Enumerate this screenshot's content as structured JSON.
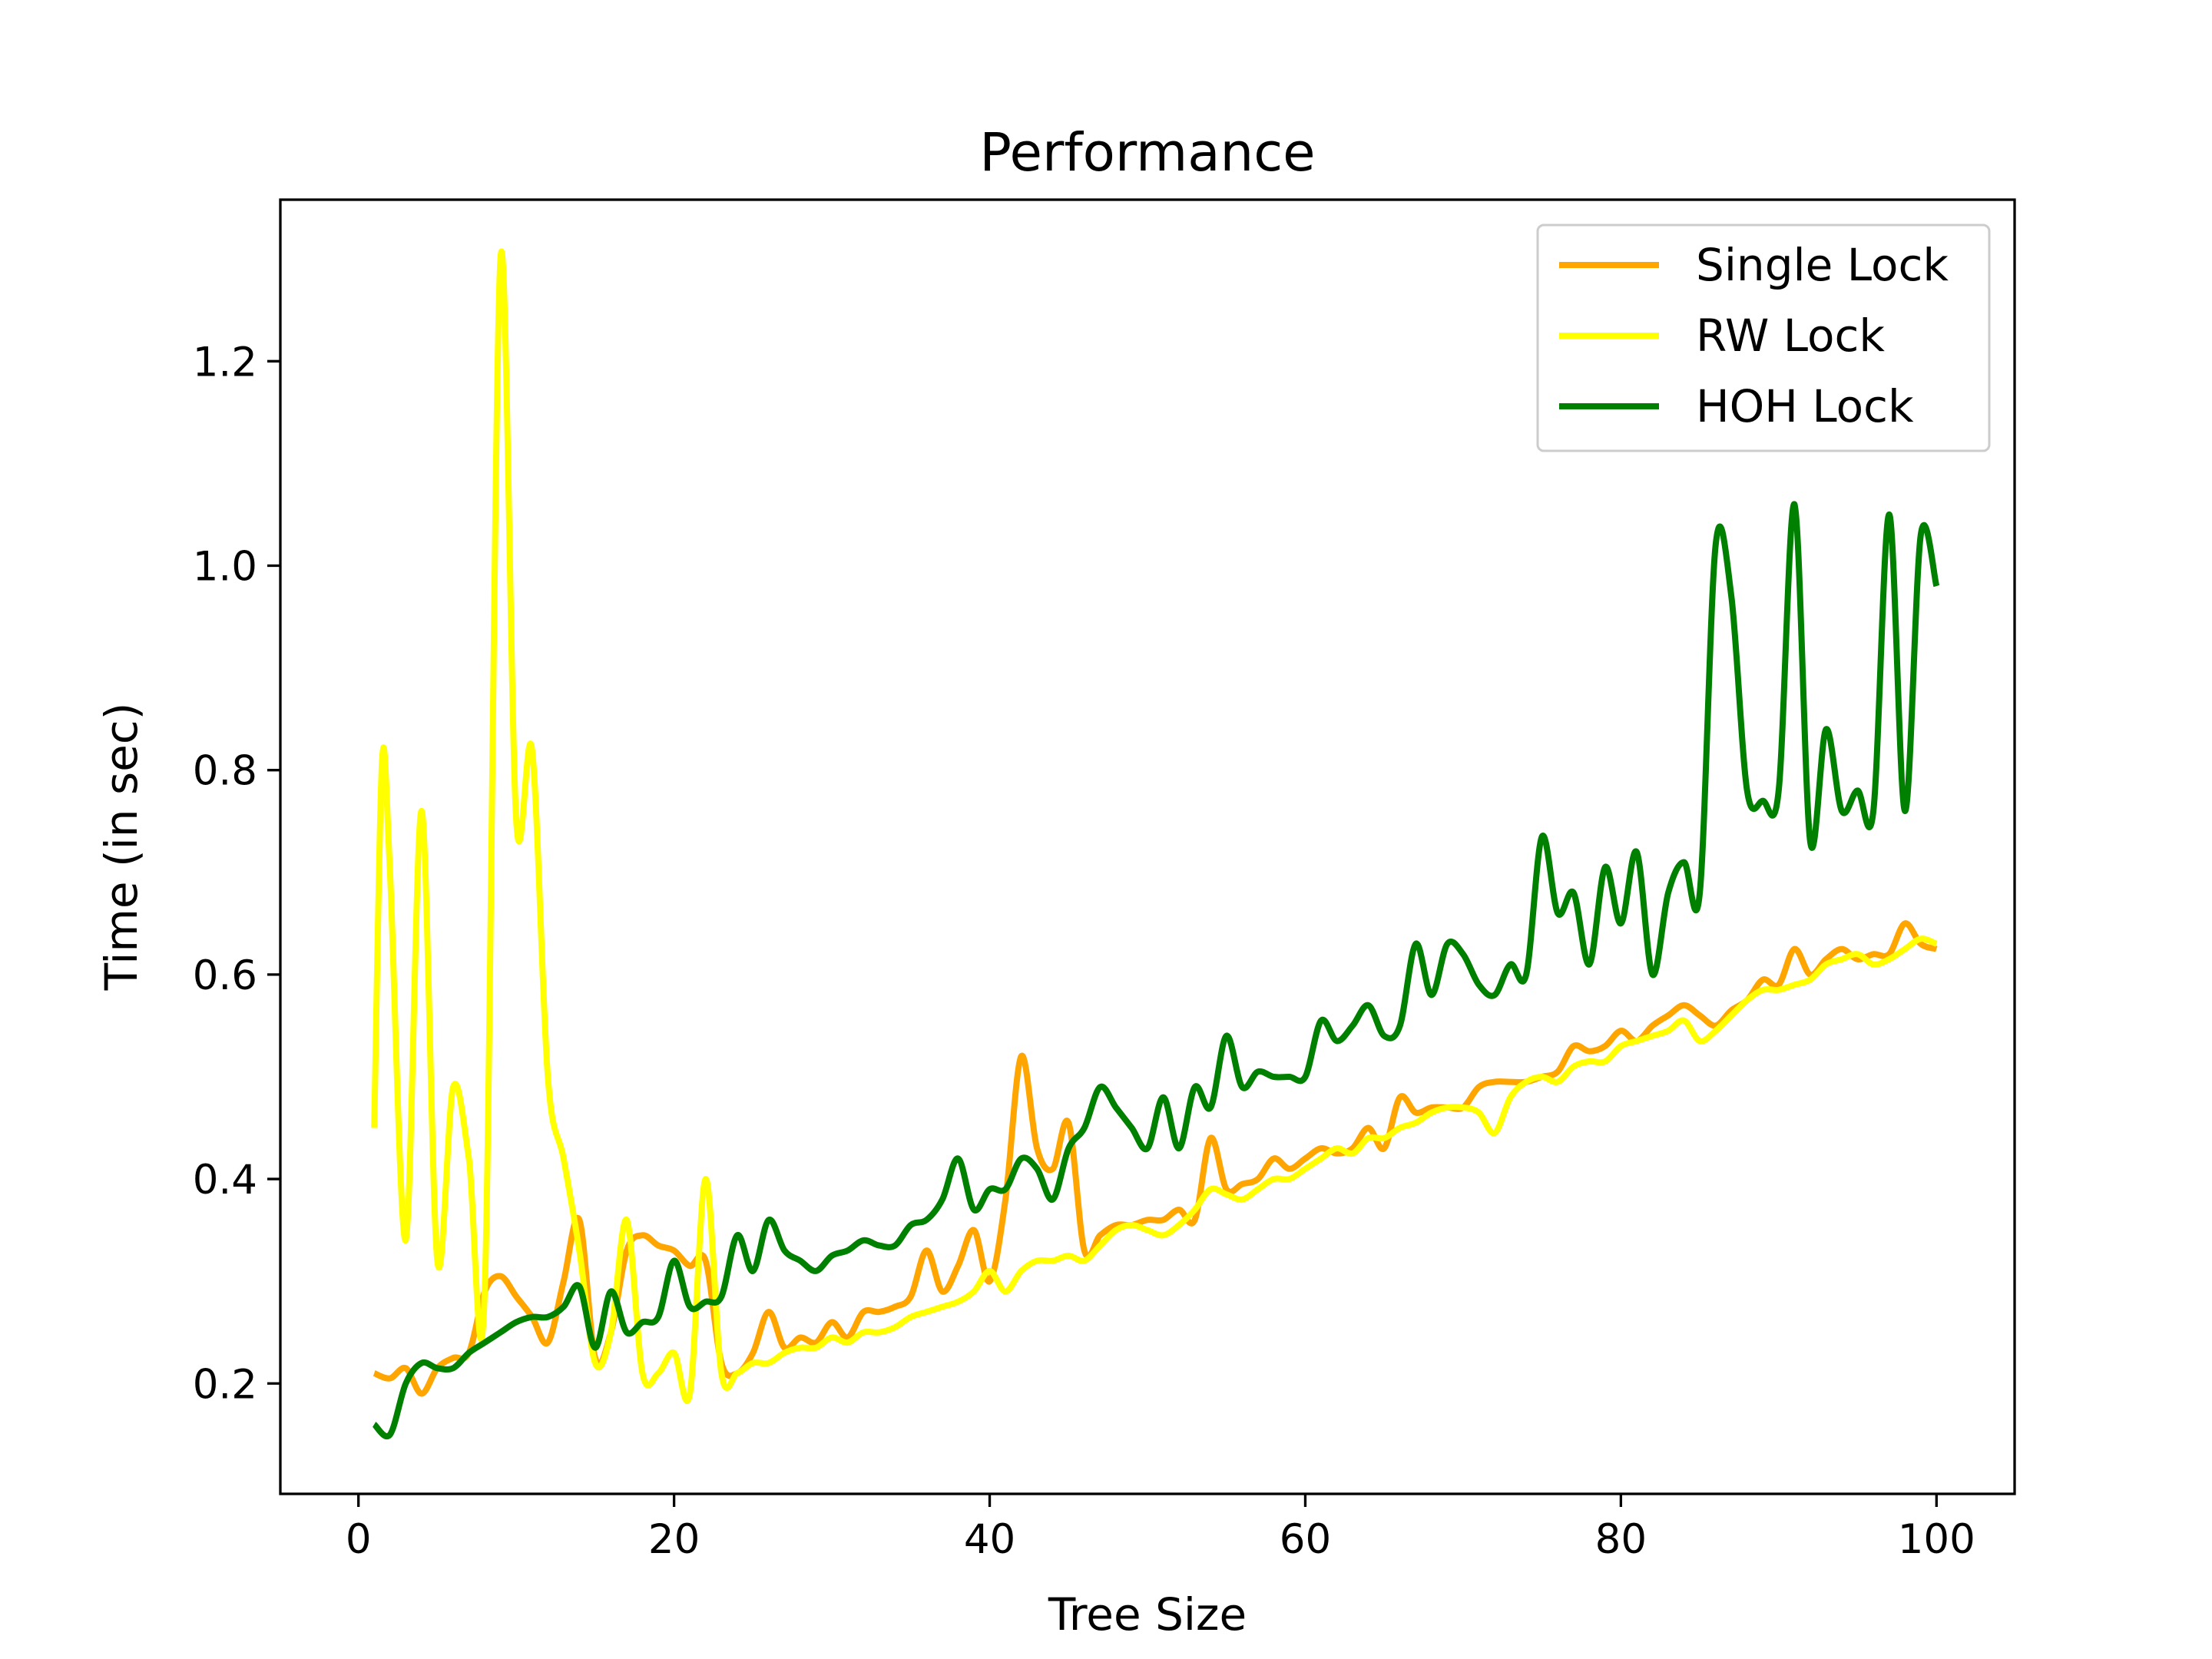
{
  "chart_data": {
    "type": "line",
    "title": "Performance",
    "xlabel": "Tree Size",
    "ylabel": "Time (in sec)",
    "xlim": [
      -4.95,
      104.95
    ],
    "ylim": [
      0.092,
      1.358
    ],
    "xticks": [
      0,
      20,
      40,
      60,
      80,
      100
    ],
    "yticks": [
      0.2,
      0.4,
      0.6,
      0.8,
      1.0,
      1.2
    ],
    "ytick_labels": [
      "0.2",
      "0.4",
      "0.6",
      "0.8",
      "1.0",
      "1.2"
    ],
    "grid": false,
    "legend_position": "top-right",
    "series": [
      {
        "name": "Single Lock",
        "color": "#FFA500",
        "points": [
          [
            1,
            0.21
          ],
          [
            2,
            0.205
          ],
          [
            3,
            0.215
          ],
          [
            4,
            0.19
          ],
          [
            5,
            0.215
          ],
          [
            6,
            0.225
          ],
          [
            7,
            0.23
          ],
          [
            8,
            0.29
          ],
          [
            9,
            0.305
          ],
          [
            10,
            0.285
          ],
          [
            11,
            0.265
          ],
          [
            12,
            0.24
          ],
          [
            13,
            0.3
          ],
          [
            14,
            0.36
          ],
          [
            15,
            0.225
          ],
          [
            16,
            0.25
          ],
          [
            17,
            0.33
          ],
          [
            18,
            0.345
          ],
          [
            19,
            0.335
          ],
          [
            20,
            0.33
          ],
          [
            21,
            0.315
          ],
          [
            22,
            0.32
          ],
          [
            23,
            0.22
          ],
          [
            24,
            0.21
          ],
          [
            25,
            0.23
          ],
          [
            26,
            0.27
          ],
          [
            27,
            0.235
          ],
          [
            28,
            0.245
          ],
          [
            29,
            0.24
          ],
          [
            30,
            0.26
          ],
          [
            31,
            0.245
          ],
          [
            32,
            0.27
          ],
          [
            33,
            0.27
          ],
          [
            34,
            0.275
          ],
          [
            35,
            0.285
          ],
          [
            36,
            0.33
          ],
          [
            37,
            0.29
          ],
          [
            38,
            0.315
          ],
          [
            39,
            0.35
          ],
          [
            40,
            0.3
          ],
          [
            41,
            0.38
          ],
          [
            42,
            0.52
          ],
          [
            43,
            0.43
          ],
          [
            44,
            0.41
          ],
          [
            45,
            0.455
          ],
          [
            46,
            0.33
          ],
          [
            47,
            0.345
          ],
          [
            48,
            0.355
          ],
          [
            49,
            0.355
          ],
          [
            50,
            0.36
          ],
          [
            51,
            0.36
          ],
          [
            52,
            0.37
          ],
          [
            53,
            0.36
          ],
          [
            54,
            0.44
          ],
          [
            55,
            0.39
          ],
          [
            56,
            0.395
          ],
          [
            57,
            0.4
          ],
          [
            58,
            0.42
          ],
          [
            59,
            0.41
          ],
          [
            60,
            0.42
          ],
          [
            61,
            0.43
          ],
          [
            62,
            0.425
          ],
          [
            63,
            0.43
          ],
          [
            64,
            0.45
          ],
          [
            65,
            0.43
          ],
          [
            66,
            0.48
          ],
          [
            67,
            0.465
          ],
          [
            68,
            0.47
          ],
          [
            69,
            0.47
          ],
          [
            70,
            0.47
          ],
          [
            71,
            0.49
          ],
          [
            72,
            0.495
          ],
          [
            73,
            0.495
          ],
          [
            74,
            0.495
          ],
          [
            75,
            0.5
          ],
          [
            76,
            0.505
          ],
          [
            77,
            0.53
          ],
          [
            78,
            0.525
          ],
          [
            79,
            0.53
          ],
          [
            80,
            0.545
          ],
          [
            81,
            0.535
          ],
          [
            82,
            0.55
          ],
          [
            83,
            0.56
          ],
          [
            84,
            0.57
          ],
          [
            85,
            0.56
          ],
          [
            86,
            0.55
          ],
          [
            87,
            0.565
          ],
          [
            88,
            0.575
          ],
          [
            89,
            0.595
          ],
          [
            90,
            0.59
          ],
          [
            91,
            0.625
          ],
          [
            92,
            0.6
          ],
          [
            93,
            0.615
          ],
          [
            94,
            0.625
          ],
          [
            95,
            0.615
          ],
          [
            96,
            0.62
          ],
          [
            97,
            0.62
          ],
          [
            98,
            0.65
          ],
          [
            99,
            0.63
          ],
          [
            100,
            0.625
          ]
        ]
      },
      {
        "name": "RW Lock",
        "color": "#FFFF00",
        "points": [
          [
            1,
            0.45
          ],
          [
            1.5,
            0.81
          ],
          [
            2,
            0.7
          ],
          [
            3,
            0.34
          ],
          [
            4,
            0.76
          ],
          [
            5,
            0.32
          ],
          [
            6,
            0.49
          ],
          [
            7,
            0.42
          ],
          [
            8,
            0.29
          ],
          [
            9,
            1.3
          ],
          [
            10,
            0.75
          ],
          [
            11,
            0.82
          ],
          [
            12,
            0.5
          ],
          [
            13,
            0.42
          ],
          [
            14,
            0.33
          ],
          [
            15,
            0.22
          ],
          [
            16,
            0.25
          ],
          [
            17,
            0.36
          ],
          [
            18,
            0.21
          ],
          [
            19,
            0.21
          ],
          [
            20,
            0.23
          ],
          [
            21,
            0.19
          ],
          [
            22,
            0.4
          ],
          [
            23,
            0.21
          ],
          [
            24,
            0.21
          ],
          [
            25,
            0.22
          ],
          [
            26,
            0.22
          ],
          [
            27,
            0.23
          ],
          [
            28,
            0.235
          ],
          [
            29,
            0.235
          ],
          [
            30,
            0.245
          ],
          [
            31,
            0.24
          ],
          [
            32,
            0.25
          ],
          [
            33,
            0.25
          ],
          [
            34,
            0.255
          ],
          [
            35,
            0.265
          ],
          [
            36,
            0.27
          ],
          [
            37,
            0.275
          ],
          [
            38,
            0.28
          ],
          [
            39,
            0.29
          ],
          [
            40,
            0.31
          ],
          [
            41,
            0.29
          ],
          [
            42,
            0.31
          ],
          [
            43,
            0.32
          ],
          [
            44,
            0.32
          ],
          [
            45,
            0.325
          ],
          [
            46,
            0.32
          ],
          [
            47,
            0.335
          ],
          [
            48,
            0.35
          ],
          [
            49,
            0.355
          ],
          [
            50,
            0.35
          ],
          [
            51,
            0.345
          ],
          [
            52,
            0.355
          ],
          [
            53,
            0.37
          ],
          [
            54,
            0.39
          ],
          [
            55,
            0.385
          ],
          [
            56,
            0.38
          ],
          [
            57,
            0.39
          ],
          [
            58,
            0.4
          ],
          [
            59,
            0.4
          ],
          [
            60,
            0.41
          ],
          [
            61,
            0.42
          ],
          [
            62,
            0.43
          ],
          [
            63,
            0.425
          ],
          [
            64,
            0.44
          ],
          [
            65,
            0.44
          ],
          [
            66,
            0.45
          ],
          [
            67,
            0.455
          ],
          [
            68,
            0.465
          ],
          [
            69,
            0.47
          ],
          [
            70,
            0.47
          ],
          [
            71,
            0.465
          ],
          [
            72,
            0.445
          ],
          [
            73,
            0.48
          ],
          [
            74,
            0.495
          ],
          [
            75,
            0.5
          ],
          [
            76,
            0.495
          ],
          [
            77,
            0.51
          ],
          [
            78,
            0.515
          ],
          [
            79,
            0.515
          ],
          [
            80,
            0.53
          ],
          [
            81,
            0.535
          ],
          [
            82,
            0.54
          ],
          [
            83,
            0.545
          ],
          [
            84,
            0.555
          ],
          [
            85,
            0.535
          ],
          [
            86,
            0.545
          ],
          [
            87,
            0.56
          ],
          [
            88,
            0.575
          ],
          [
            89,
            0.585
          ],
          [
            90,
            0.585
          ],
          [
            91,
            0.59
          ],
          [
            92,
            0.595
          ],
          [
            93,
            0.61
          ],
          [
            94,
            0.615
          ],
          [
            95,
            0.62
          ],
          [
            96,
            0.61
          ],
          [
            97,
            0.615
          ],
          [
            98,
            0.625
          ],
          [
            99,
            0.635
          ],
          [
            100,
            0.63
          ]
        ]
      },
      {
        "name": "HOH Lock",
        "color": "#008000",
        "points": [
          [
            1,
            0.16
          ],
          [
            2,
            0.15
          ],
          [
            3,
            0.2
          ],
          [
            4,
            0.22
          ],
          [
            5,
            0.215
          ],
          [
            6,
            0.215
          ],
          [
            7,
            0.23
          ],
          [
            8,
            0.24
          ],
          [
            9,
            0.25
          ],
          [
            10,
            0.26
          ],
          [
            11,
            0.265
          ],
          [
            12,
            0.265
          ],
          [
            13,
            0.275
          ],
          [
            14,
            0.295
          ],
          [
            15,
            0.235
          ],
          [
            16,
            0.29
          ],
          [
            17,
            0.25
          ],
          [
            18,
            0.26
          ],
          [
            19,
            0.265
          ],
          [
            20,
            0.32
          ],
          [
            21,
            0.275
          ],
          [
            22,
            0.28
          ],
          [
            23,
            0.285
          ],
          [
            24,
            0.345
          ],
          [
            25,
            0.31
          ],
          [
            26,
            0.36
          ],
          [
            27,
            0.33
          ],
          [
            28,
            0.32
          ],
          [
            29,
            0.31
          ],
          [
            30,
            0.325
          ],
          [
            31,
            0.33
          ],
          [
            32,
            0.34
          ],
          [
            33,
            0.335
          ],
          [
            34,
            0.335
          ],
          [
            35,
            0.355
          ],
          [
            36,
            0.36
          ],
          [
            37,
            0.38
          ],
          [
            38,
            0.42
          ],
          [
            39,
            0.37
          ],
          [
            40,
            0.39
          ],
          [
            41,
            0.39
          ],
          [
            42,
            0.42
          ],
          [
            43,
            0.41
          ],
          [
            44,
            0.38
          ],
          [
            45,
            0.43
          ],
          [
            46,
            0.45
          ],
          [
            47,
            0.49
          ],
          [
            48,
            0.47
          ],
          [
            49,
            0.45
          ],
          [
            50,
            0.43
          ],
          [
            51,
            0.48
          ],
          [
            52,
            0.43
          ],
          [
            53,
            0.49
          ],
          [
            54,
            0.47
          ],
          [
            55,
            0.54
          ],
          [
            56,
            0.49
          ],
          [
            57,
            0.505
          ],
          [
            58,
            0.5
          ],
          [
            59,
            0.5
          ],
          [
            60,
            0.5
          ],
          [
            61,
            0.555
          ],
          [
            62,
            0.535
          ],
          [
            63,
            0.55
          ],
          [
            64,
            0.57
          ],
          [
            65,
            0.54
          ],
          [
            66,
            0.55
          ],
          [
            67,
            0.63
          ],
          [
            68,
            0.58
          ],
          [
            69,
            0.63
          ],
          [
            70,
            0.62
          ],
          [
            71,
            0.59
          ],
          [
            72,
            0.58
          ],
          [
            73,
            0.61
          ],
          [
            74,
            0.6
          ],
          [
            75,
            0.735
          ],
          [
            76,
            0.66
          ],
          [
            77,
            0.68
          ],
          [
            78,
            0.61
          ],
          [
            79,
            0.705
          ],
          [
            80,
            0.65
          ],
          [
            81,
            0.72
          ],
          [
            82,
            0.6
          ],
          [
            83,
            0.68
          ],
          [
            84,
            0.71
          ],
          [
            85,
            0.68
          ],
          [
            86,
            1.02
          ],
          [
            87,
            0.97
          ],
          [
            88,
            0.78
          ],
          [
            89,
            0.77
          ],
          [
            90,
            0.78
          ],
          [
            91,
            1.06
          ],
          [
            92,
            0.73
          ],
          [
            93,
            0.84
          ],
          [
            94,
            0.76
          ],
          [
            95,
            0.78
          ],
          [
            96,
            0.76
          ],
          [
            97,
            1.05
          ],
          [
            98,
            0.76
          ],
          [
            99,
            1.03
          ],
          [
            100,
            0.98
          ]
        ]
      }
    ]
  }
}
